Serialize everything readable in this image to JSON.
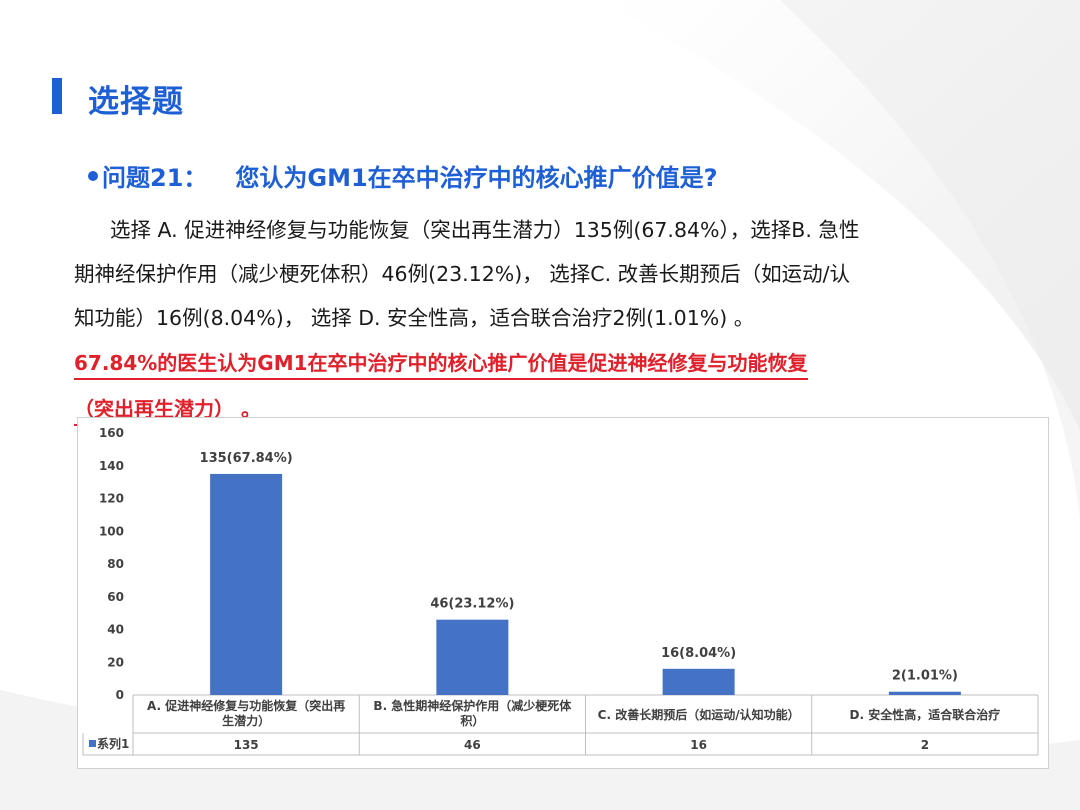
{
  "slide": {
    "title": "选择题",
    "question_label": "问题21：",
    "question_text": "您认为GM1在卒中治疗中的核心推广价值是?",
    "body_lines": [
      "选择 A. 促进神经修复与功能恢复（突出再生潜力）135例(67.84%），选择B. 急性",
      "期神经保护作用（减少梗死体积）46例(23.12%)，  选择C. 改善长期预后（如运动/认",
      "知功能）16例(8.04%)，  选择 D. 安全性高，适合联合治疗2例(1.01%) 。"
    ],
    "conclusion_lines": [
      " 67.84%的医生认为GM1在卒中治疗中的核心推广价值是促进神经修复与功能恢复",
      "（突出再生潜力）  。"
    ]
  },
  "colors": {
    "accent": "#1f5fd6",
    "highlight": "#e0202a",
    "bar": "#4472c4"
  },
  "chart_data": {
    "type": "bar",
    "categories": [
      [
        "A. 促进神经修复与功能恢复（突出再",
        "生潜力）"
      ],
      [
        "B. 急性期神经保护作用（减少梗死体",
        "积）"
      ],
      [
        "C. 改善长期预后（如运动/认知功能）"
      ],
      [
        "D. 安全性高，适合联合治疗"
      ]
    ],
    "series": [
      {
        "name": "系列1",
        "values": [
          135,
          46,
          16,
          2
        ]
      }
    ],
    "data_labels": [
      "135(67.84%)",
      "46(23.12%)",
      "16(8.04%)",
      "2(1.01%)"
    ],
    "table_values": [
      "135",
      "46",
      "16",
      "2"
    ],
    "yticks": [
      "0",
      "20",
      "40",
      "60",
      "80",
      "100",
      "120",
      "140",
      "160"
    ],
    "ylim": [
      0,
      160
    ],
    "grid": false,
    "legend": "data-table"
  }
}
